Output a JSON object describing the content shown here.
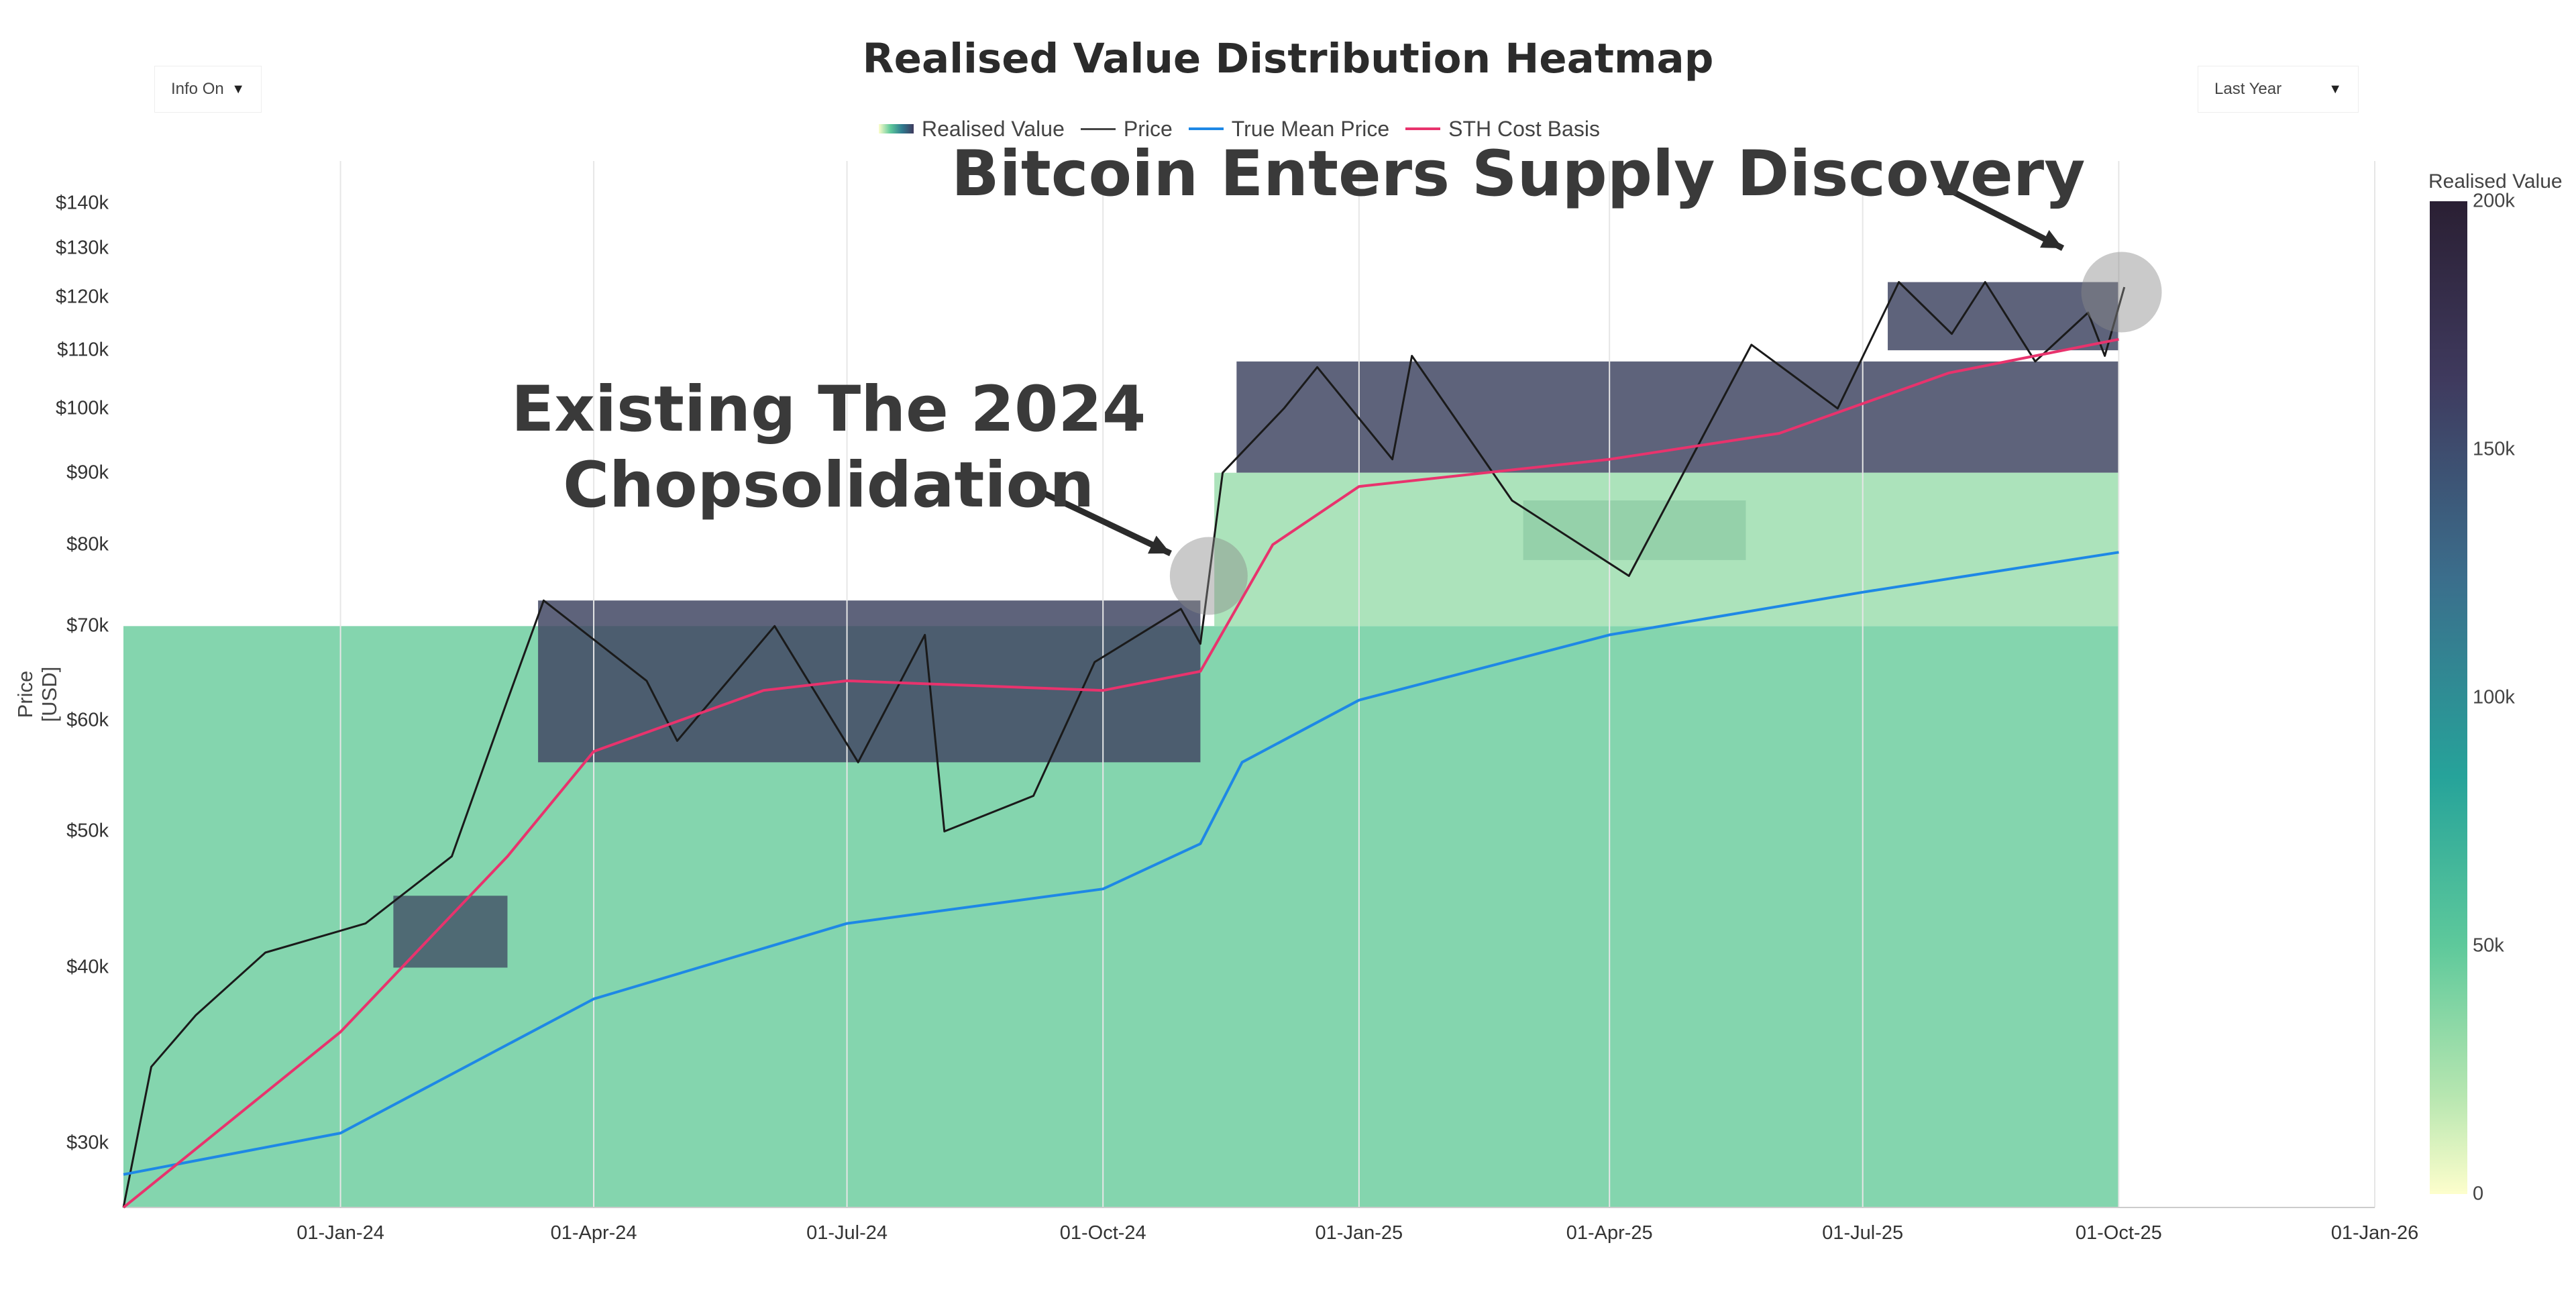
{
  "title": "Realised Value Distribution Heatmap",
  "controls": {
    "info_toggle": "Info On",
    "range_select": "Last Year"
  },
  "legend": [
    {
      "label": "Realised Value",
      "kind": "gradient"
    },
    {
      "label": "Price",
      "color": "#444444"
    },
    {
      "label": "True Mean Price",
      "color": "#1e88e5"
    },
    {
      "label": "STH Cost Basis",
      "color": "#e8336d"
    }
  ],
  "annotations": {
    "supply_discovery": "Bitcoin Enters Supply Discovery",
    "chop_line1": "Existing The 2024",
    "chop_line2": "Chopsolidation"
  },
  "colorbar": {
    "title": "Realised Value",
    "ticks": [
      "200k",
      "150k",
      "100k",
      "50k",
      "0"
    ]
  },
  "colors": {
    "price": "#1a1a1a",
    "true_mean": "#1e88e5",
    "sth": "#e8336d",
    "heat_low": "#fdfecc",
    "heat_high": "#3f3a5e"
  },
  "chart_data": {
    "type": "heatmap",
    "title": "Realised Value Distribution Heatmap",
    "ylabel": "Price [USD]",
    "yscale": "log",
    "ylim": [
      27000,
      150000
    ],
    "ytick_labels": [
      "$140k",
      "$130k",
      "$120k",
      "$110k",
      "$100k",
      "$90k",
      "$80k",
      "$70k",
      "$60k",
      "$50k",
      "$40k",
      "$30k"
    ],
    "ytick_values": [
      140000,
      130000,
      120000,
      110000,
      100000,
      90000,
      80000,
      70000,
      60000,
      50000,
      40000,
      30000
    ],
    "xlim": [
      "2023-10-15",
      "2026-01-01"
    ],
    "xtick_labels": [
      "01-Jan-24",
      "01-Apr-24",
      "01-Jul-24",
      "01-Oct-24",
      "01-Jan-25",
      "01-Apr-25",
      "01-Jul-25",
      "01-Oct-25",
      "01-Jan-26"
    ],
    "xtick_dates": [
      "2024-01-01",
      "2024-04-01",
      "2024-07-01",
      "2024-10-01",
      "2025-01-01",
      "2025-04-01",
      "2025-07-01",
      "2025-10-01",
      "2026-01-01"
    ],
    "series": [
      {
        "name": "Price",
        "dates": [
          "2023-10-15",
          "2023-10-25",
          "2023-11-10",
          "2023-12-05",
          "2024-01-10",
          "2024-02-10",
          "2024-03-01",
          "2024-03-14",
          "2024-04-20",
          "2024-05-01",
          "2024-06-05",
          "2024-07-05",
          "2024-07-29",
          "2024-08-05",
          "2024-09-06",
          "2024-09-28",
          "2024-10-29",
          "2024-11-05",
          "2024-11-13",
          "2024-12-05",
          "2024-12-17",
          "2025-01-13",
          "2025-01-20",
          "2025-02-25",
          "2025-04-08",
          "2025-05-22",
          "2025-06-22",
          "2025-07-14",
          "2025-08-02",
          "2025-08-14",
          "2025-09-01",
          "2025-09-20",
          "2025-09-26",
          "2025-10-03"
        ],
        "values": [
          27000,
          34000,
          37000,
          41000,
          43000,
          48000,
          62000,
          73000,
          64000,
          58000,
          70000,
          56000,
          69000,
          50000,
          53000,
          66000,
          72000,
          68000,
          90000,
          100000,
          107000,
          92000,
          109000,
          86000,
          76000,
          111000,
          100000,
          123000,
          113000,
          123000,
          108000,
          117000,
          109000,
          122000
        ]
      },
      {
        "name": "True Mean Price",
        "dates": [
          "2023-10-15",
          "2024-01-01",
          "2024-04-01",
          "2024-07-01",
          "2024-10-01",
          "2024-11-05",
          "2024-11-20",
          "2025-01-01",
          "2025-04-01",
          "2025-07-01",
          "2025-10-01"
        ],
        "values": [
          28500,
          30500,
          38000,
          43000,
          45500,
          49000,
          56000,
          62000,
          69000,
          74000,
          79000
        ]
      },
      {
        "name": "STH Cost Basis",
        "dates": [
          "2023-10-15",
          "2024-01-01",
          "2024-03-01",
          "2024-04-01",
          "2024-06-01",
          "2024-07-01",
          "2024-10-01",
          "2024-11-05",
          "2024-12-01",
          "2025-01-01",
          "2025-04-01",
          "2025-06-01",
          "2025-08-01",
          "2025-10-01"
        ],
        "values": [
          27000,
          36000,
          48000,
          57000,
          63000,
          64000,
          63000,
          65000,
          80000,
          88000,
          92000,
          96000,
          106000,
          112000
        ]
      }
    ],
    "heatmap_bands": [
      {
        "from": "2023-10-15",
        "to": "2025-10-01",
        "lo": 27000,
        "hi": 70000,
        "level": 0.45
      },
      {
        "from": "2024-03-12",
        "to": "2024-11-05",
        "lo": 56000,
        "hi": 73000,
        "level": 0.95
      },
      {
        "from": "2024-01-20",
        "to": "2024-03-01",
        "lo": 40000,
        "hi": 45000,
        "level": 0.9
      },
      {
        "from": "2024-11-18",
        "to": "2025-10-01",
        "lo": 90000,
        "hi": 108000,
        "level": 0.95
      },
      {
        "from": "2025-03-01",
        "to": "2025-05-20",
        "lo": 78000,
        "hi": 86000,
        "level": 0.8
      },
      {
        "from": "2025-07-10",
        "to": "2025-10-01",
        "lo": 110000,
        "hi": 123000,
        "level": 0.95
      },
      {
        "from": "2024-11-10",
        "to": "2025-10-01",
        "lo": 70000,
        "hi": 90000,
        "level": 0.3
      }
    ]
  }
}
